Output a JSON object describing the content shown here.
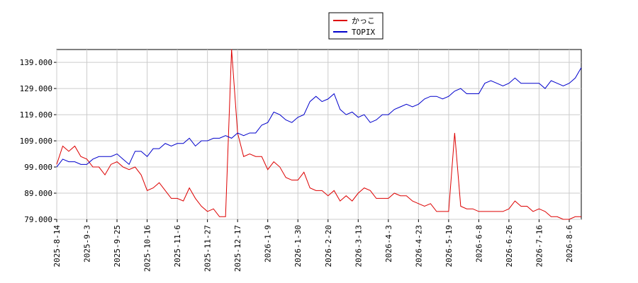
{
  "chart_data": {
    "type": "line",
    "categories": [
      "2025-8-14",
      null,
      null,
      null,
      null,
      "2025-9-3",
      null,
      null,
      null,
      null,
      "2025-9-25",
      null,
      null,
      null,
      null,
      "2025-10-16",
      null,
      null,
      null,
      null,
      "2025-11-6",
      null,
      null,
      null,
      null,
      "2025-11-27",
      null,
      null,
      null,
      null,
      "2025-12-17",
      null,
      null,
      null,
      null,
      "2026-1-9",
      null,
      null,
      null,
      null,
      "2026-1-30",
      null,
      null,
      null,
      null,
      "2026-2-20",
      null,
      null,
      null,
      null,
      "2026-3-13",
      null,
      null,
      null,
      null,
      "2026-4-3",
      null,
      null,
      null,
      null,
      "2026-4-23",
      null,
      null,
      null,
      null,
      "2026-5-19",
      null,
      null,
      null,
      null,
      "2026-6-8",
      null,
      null,
      null,
      null,
      "2026-6-26",
      null,
      null,
      null,
      null,
      "2026-7-16",
      null,
      null,
      null,
      null,
      "2026-8-6",
      null,
      null
    ],
    "series": [
      {
        "name": "かっこ",
        "color": "#dd0000",
        "values": [
          100,
          107,
          105,
          107,
          103,
          102,
          99,
          99,
          96,
          100,
          101,
          99,
          98,
          99,
          96,
          90,
          91,
          93,
          90,
          87,
          87,
          86,
          91,
          87,
          84,
          82,
          83,
          80,
          80,
          144,
          112,
          103,
          104,
          103,
          103,
          98,
          101,
          99,
          95,
          94,
          94,
          97,
          91,
          90,
          90,
          88,
          90,
          86,
          88,
          86,
          89,
          91,
          90,
          87,
          87,
          87,
          89,
          88,
          88,
          86,
          85,
          84,
          85,
          82,
          82,
          82,
          112,
          84,
          83,
          83,
          82,
          82,
          82,
          82,
          82,
          83,
          86,
          84,
          84,
          82,
          83,
          82,
          80,
          80,
          79,
          79,
          80,
          80
        ]
      },
      {
        "name": "TOPIX",
        "color": "#0000cc",
        "values": [
          99,
          102,
          101,
          101,
          100,
          100,
          102,
          103,
          103,
          103,
          104,
          102,
          100,
          105,
          105,
          103,
          106,
          106,
          108,
          107,
          108,
          108,
          110,
          107,
          109,
          109,
          110,
          110,
          111,
          110,
          112,
          111,
          112,
          112,
          115,
          116,
          120,
          119,
          117,
          116,
          118,
          119,
          124,
          126,
          124,
          125,
          127,
          121,
          119,
          120,
          118,
          119,
          116,
          117,
          119,
          119,
          121,
          122,
          123,
          122,
          123,
          125,
          126,
          126,
          125,
          126,
          128,
          129,
          127,
          127,
          127,
          131,
          132,
          131,
          130,
          131,
          133,
          131,
          131,
          131,
          131,
          129,
          132,
          131,
          130,
          131,
          133,
          137
        ]
      }
    ],
    "ylim": [
      79,
      143.9
    ],
    "yticks": [
      {
        "value": 79,
        "label": "79.000"
      },
      {
        "value": 89,
        "label": "89.000"
      },
      {
        "value": 99,
        "label": "99.000"
      },
      {
        "value": 109,
        "label": "109.000"
      },
      {
        "value": 119,
        "label": "119.000"
      },
      {
        "value": 129,
        "label": "129.000"
      },
      {
        "value": 139,
        "label": "139.000"
      }
    ],
    "grid": true
  }
}
